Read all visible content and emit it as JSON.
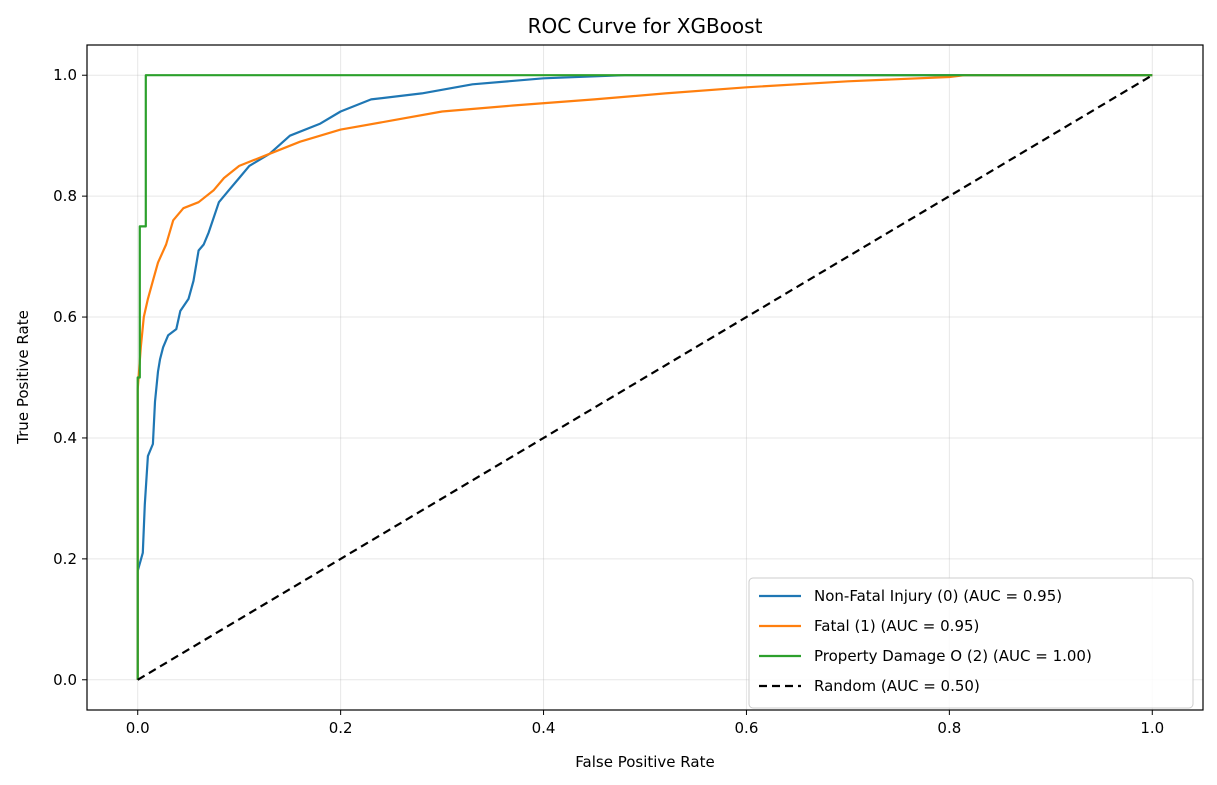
{
  "chart_data": {
    "type": "line",
    "title": "ROC Curve for XGBoost",
    "xlabel": "False Positive Rate",
    "ylabel": "True Positive Rate",
    "xlim": [
      -0.05,
      1.05
    ],
    "ylim": [
      -0.05,
      1.05
    ],
    "xticks": [
      0.0,
      0.2,
      0.4,
      0.6,
      0.8,
      1.0
    ],
    "yticks": [
      0.0,
      0.2,
      0.4,
      0.6,
      0.8,
      1.0
    ],
    "xtick_labels": [
      "0.0",
      "0.2",
      "0.4",
      "0.6",
      "0.8",
      "1.0"
    ],
    "ytick_labels": [
      "0.0",
      "0.2",
      "0.4",
      "0.6",
      "0.8",
      "1.0"
    ],
    "grid": true,
    "legend_position": "lower-right",
    "series": [
      {
        "name": "Non-Fatal Injury (0) (AUC = 0.95)",
        "color": "#1f77b4",
        "dash": "solid",
        "points": [
          [
            0,
            0
          ],
          [
            0,
            0.18
          ],
          [
            0.005,
            0.21
          ],
          [
            0.007,
            0.29
          ],
          [
            0.01,
            0.37
          ],
          [
            0.015,
            0.39
          ],
          [
            0.017,
            0.46
          ],
          [
            0.02,
            0.51
          ],
          [
            0.022,
            0.53
          ],
          [
            0.025,
            0.55
          ],
          [
            0.03,
            0.57
          ],
          [
            0.038,
            0.58
          ],
          [
            0.042,
            0.61
          ],
          [
            0.05,
            0.63
          ],
          [
            0.055,
            0.66
          ],
          [
            0.06,
            0.71
          ],
          [
            0.065,
            0.72
          ],
          [
            0.07,
            0.74
          ],
          [
            0.08,
            0.79
          ],
          [
            0.09,
            0.81
          ],
          [
            0.1,
            0.83
          ],
          [
            0.11,
            0.85
          ],
          [
            0.13,
            0.87
          ],
          [
            0.15,
            0.9
          ],
          [
            0.18,
            0.92
          ],
          [
            0.2,
            0.94
          ],
          [
            0.23,
            0.96
          ],
          [
            0.28,
            0.97
          ],
          [
            0.33,
            0.985
          ],
          [
            0.4,
            0.995
          ],
          [
            0.48,
            1.0
          ],
          [
            1.0,
            1.0
          ]
        ]
      },
      {
        "name": "Fatal (1) (AUC = 0.95)",
        "color": "#ff7f0e",
        "dash": "solid",
        "points": [
          [
            0,
            0
          ],
          [
            0,
            0.48
          ],
          [
            0.003,
            0.55
          ],
          [
            0.006,
            0.6
          ],
          [
            0.01,
            0.63
          ],
          [
            0.015,
            0.66
          ],
          [
            0.02,
            0.69
          ],
          [
            0.028,
            0.72
          ],
          [
            0.035,
            0.76
          ],
          [
            0.045,
            0.78
          ],
          [
            0.06,
            0.79
          ],
          [
            0.075,
            0.81
          ],
          [
            0.085,
            0.83
          ],
          [
            0.1,
            0.85
          ],
          [
            0.13,
            0.87
          ],
          [
            0.16,
            0.89
          ],
          [
            0.2,
            0.91
          ],
          [
            0.25,
            0.925
          ],
          [
            0.3,
            0.94
          ],
          [
            0.37,
            0.95
          ],
          [
            0.45,
            0.96
          ],
          [
            0.52,
            0.97
          ],
          [
            0.6,
            0.98
          ],
          [
            0.7,
            0.99
          ],
          [
            0.8,
            0.997
          ],
          [
            0.815,
            1.0
          ],
          [
            1.0,
            1.0
          ]
        ]
      },
      {
        "name": "Property Damage O (2) (AUC = 1.00)",
        "color": "#2ca02c",
        "dash": "solid",
        "points": [
          [
            0,
            0
          ],
          [
            0,
            0.5
          ],
          [
            0.002,
            0.5
          ],
          [
            0.002,
            0.75
          ],
          [
            0.008,
            0.75
          ],
          [
            0.008,
            1.0
          ],
          [
            1.0,
            1.0
          ]
        ]
      },
      {
        "name": "Random (AUC = 0.50)",
        "color": "#000000",
        "dash": "dashed",
        "points": [
          [
            0,
            0
          ],
          [
            1,
            1
          ]
        ]
      }
    ]
  }
}
